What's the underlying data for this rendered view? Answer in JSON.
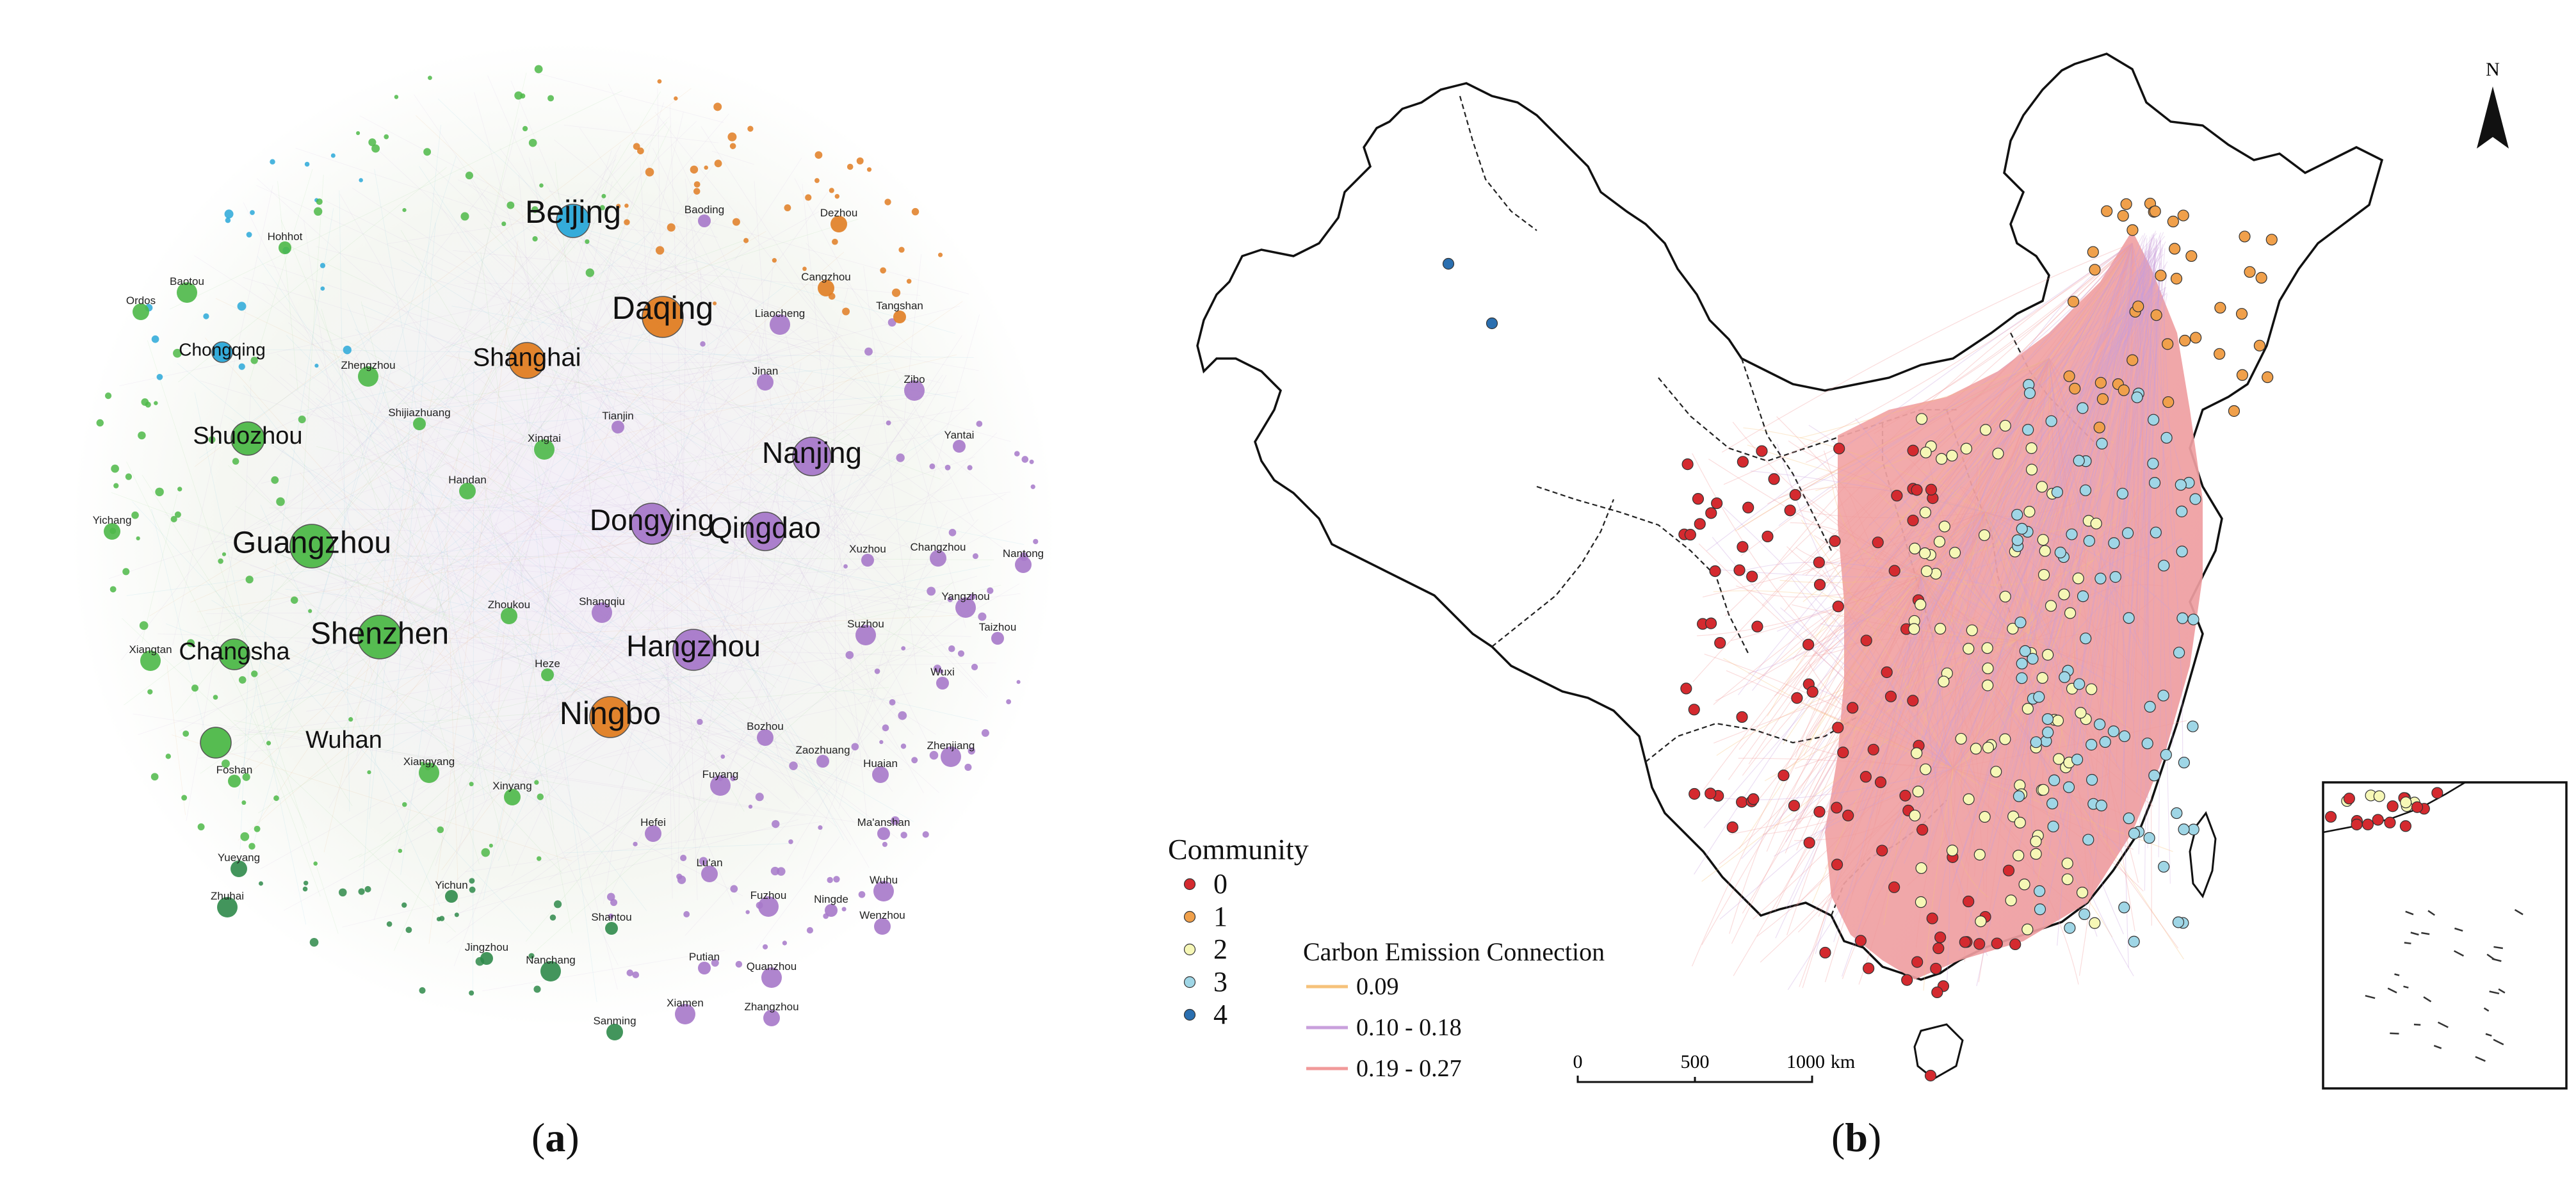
{
  "panel_a": {
    "caption_letter": "a",
    "colors": {
      "green": "#4db848",
      "dark_green": "#2f8a4a",
      "purple": "#a678c9",
      "orange": "#e07d22",
      "blue": "#2aa8d8"
    },
    "major_nodes": [
      {
        "label": "Beijing",
        "color": "blue"
      },
      {
        "label": "Daqing",
        "color": "orange"
      },
      {
        "label": "Shanghai",
        "color": "orange"
      },
      {
        "label": "Ningbo",
        "color": "orange"
      },
      {
        "label": "Nanjing",
        "color": "purple"
      },
      {
        "label": "Dongying",
        "color": "purple"
      },
      {
        "label": "Qingdao",
        "color": "purple"
      },
      {
        "label": "Hangzhou",
        "color": "purple"
      },
      {
        "label": "Guangzhou",
        "color": "green"
      },
      {
        "label": "Shenzhen",
        "color": "green"
      },
      {
        "label": "Shuozhou",
        "color": "green"
      },
      {
        "label": "Changsha",
        "color": "green"
      },
      {
        "label": "Wuhan",
        "color": "green"
      },
      {
        "label": "Chongqing",
        "color": "blue"
      }
    ],
    "medium_nodes": [
      "Tianjin",
      "Jinan",
      "Zibo",
      "Yantai",
      "Changzhou",
      "Suzhou",
      "Wuxi",
      "Hefei",
      "Fuzhou",
      "Foshan",
      "Yueyang",
      "Baotou",
      "Hohhot",
      "Ordos",
      "Zhengzhou",
      "Shijiazhuang",
      "Handan",
      "Xingtai",
      "Tangshan",
      "Cangzhou",
      "Liaocheng",
      "Baoding",
      "Dezhou",
      "Zhuhai",
      "Xuzhou",
      "Nantong",
      "Yangzhou",
      "Taizhou",
      "Zhoukou",
      "Shangqiu",
      "Heze",
      "Bozhou",
      "Fuyang",
      "Zaozhuang",
      "Huaian",
      "Zhenjiang",
      "Ma'anshan",
      "Lu'an",
      "Wuhu",
      "Ningde",
      "Wenzhou",
      "Quanzhou",
      "Shantou",
      "Sanming",
      "Nanchang",
      "Yichun",
      "Xinyang",
      "Xiangyang",
      "Jingzhou",
      "Zhangzhou",
      "Xiamen",
      "Putian",
      "Yichang",
      "Xiangtan"
    ]
  },
  "panel_b": {
    "caption_letter": "b",
    "north_label": "N",
    "legend": {
      "community_title": "Community",
      "communities": [
        {
          "label": "0",
          "color": "#d42a2f"
        },
        {
          "label": "1",
          "color": "#f0a04b"
        },
        {
          "label": "2",
          "color": "#f6f7b6"
        },
        {
          "label": "3",
          "color": "#9fd6e6"
        },
        {
          "label": "4",
          "color": "#2a6fb0"
        }
      ],
      "connection_title": "Carbon Emission Connection",
      "connections": [
        {
          "label": "0.09",
          "color": "#f6c27a"
        },
        {
          "label": "0.10 - 0.18",
          "color": "#c9a0dc"
        },
        {
          "label": "0.19 - 0.27",
          "color": "#f19a9a"
        }
      ]
    },
    "scale_bar": {
      "ticks": [
        "0",
        "500",
        "1000"
      ],
      "unit": "km"
    }
  }
}
